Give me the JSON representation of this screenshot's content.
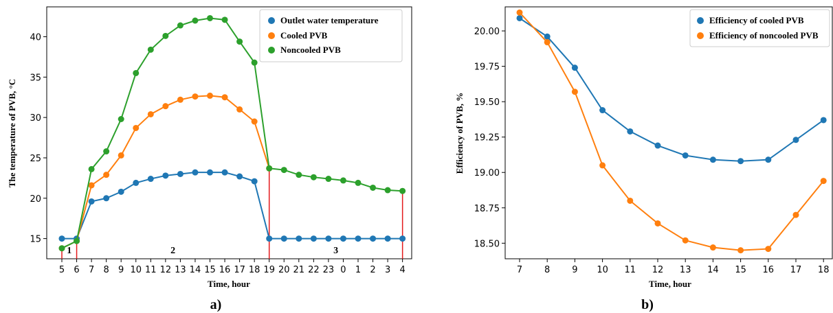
{
  "chart_data": [
    {
      "type": "line",
      "panel_label": "a)",
      "xlabel": "Time, hour",
      "ylabel": "The temperature of PVB, °C",
      "x_ticks": [
        "5",
        "6",
        "7",
        "8",
        "9",
        "10",
        "11",
        "12",
        "13",
        "14",
        "15",
        "16",
        "17",
        "18",
        "19",
        "20",
        "21",
        "22",
        "23",
        "0",
        "1",
        "2",
        "3",
        "4"
      ],
      "yticks": [
        15,
        20,
        25,
        30,
        35,
        40
      ],
      "ylim": [
        12.5,
        43.7
      ],
      "grid": false,
      "legend_position": "top-right",
      "colors": {
        "outlet": "#1f77b4",
        "cooled": "#ff7f0e",
        "noncooled": "#2ca02c",
        "marker_lines": "#e41a1c"
      },
      "series": [
        {
          "name": "Outlet water temperature",
          "values": [
            15.0,
            15.0,
            19.6,
            20.0,
            20.8,
            21.9,
            22.4,
            22.8,
            23.0,
            23.2,
            23.2,
            23.2,
            22.7,
            22.1,
            15.0,
            15.0,
            15.0,
            15.0,
            15.0,
            15.0,
            15.0,
            15.0,
            15.0,
            15.0
          ]
        },
        {
          "name": "Cooled PVB",
          "values": [
            13.8,
            14.7,
            21.6,
            22.9,
            25.3,
            28.7,
            30.4,
            31.4,
            32.2,
            32.6,
            32.7,
            32.5,
            31.0,
            29.5,
            23.7,
            null,
            null,
            null,
            null,
            null,
            null,
            null,
            null,
            null
          ]
        },
        {
          "name": "Noncooled PVB",
          "values": [
            13.8,
            14.7,
            23.6,
            25.8,
            29.8,
            35.5,
            38.4,
            40.1,
            41.4,
            42.0,
            42.3,
            42.1,
            39.4,
            36.8,
            23.7,
            23.5,
            22.9,
            22.6,
            22.4,
            22.2,
            21.9,
            21.3,
            21.0,
            20.9
          ]
        }
      ],
      "vertical_markers_x": [
        "5",
        "6",
        "19",
        "4"
      ],
      "region_labels": [
        {
          "text": "1",
          "between": [
            "5",
            "6"
          ]
        },
        {
          "text": "2",
          "between": [
            "6",
            "19"
          ]
        },
        {
          "text": "3",
          "between": [
            "19",
            "4"
          ]
        }
      ]
    },
    {
      "type": "line",
      "panel_label": "b)",
      "xlabel": "Time, hour",
      "ylabel": "Efficiency of PVB, %",
      "x": [
        7,
        8,
        9,
        10,
        11,
        12,
        13,
        14,
        15,
        16,
        17,
        18
      ],
      "yticks": [
        "18.50",
        "18.75",
        "19.00",
        "19.25",
        "19.50",
        "19.75",
        "20.00"
      ],
      "ylim": [
        18.39,
        20.17
      ],
      "grid": false,
      "legend_position": "top-right",
      "colors": {
        "cooled": "#1f77b4",
        "noncooled": "#ff7f0e"
      },
      "series": [
        {
          "name": "Efficiency of cooled PVB",
          "values": [
            20.09,
            19.96,
            19.74,
            19.44,
            19.29,
            19.19,
            19.12,
            19.09,
            19.08,
            19.09,
            19.23,
            19.37
          ]
        },
        {
          "name": "Efficiency of noncooled PVB",
          "values": [
            20.13,
            19.92,
            19.57,
            19.05,
            18.8,
            18.64,
            18.52,
            18.47,
            18.45,
            18.46,
            18.7,
            18.94
          ]
        }
      ]
    }
  ]
}
